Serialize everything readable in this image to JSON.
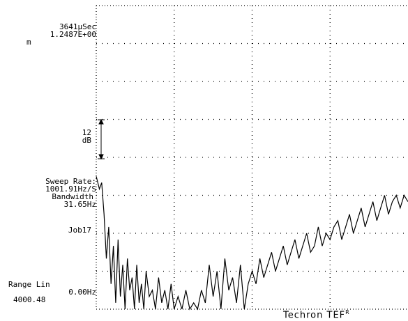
{
  "header": {
    "time": "3641µSec",
    "scale": "1.2487E+00",
    "unit_m": "m"
  },
  "scale_marker": {
    "top": "12",
    "bottom": "dB"
  },
  "sweep": {
    "rate_label": "Sweep Rate:",
    "rate_value": "1001.91Hz/S",
    "bandwidth_label": "Bandwidth",
    "bandwidth_value": "31.65Hz"
  },
  "job": "Job17",
  "range": {
    "mode": "Range Lin",
    "start": "0.00Hz",
    "end": "4000.48"
  },
  "brand": {
    "name": "Techron TEF",
    "mark": "R"
  },
  "colors": {
    "trace": "#000000",
    "grid": "#000000",
    "background": "#ffffff"
  },
  "chart_data": {
    "type": "line",
    "title": "",
    "xlabel": "",
    "ylabel": "",
    "xlim": [
      0,
      4000.48
    ],
    "ylim": [
      -96,
      0
    ],
    "grid": true,
    "x_divisions": 4,
    "y_divisions": 8,
    "series": [
      {
        "values_x": [
          0,
          40,
          70,
          100,
          130,
          160,
          190,
          220,
          250,
          280,
          310,
          340,
          370,
          400,
          430,
          460,
          490,
          520,
          550,
          580,
          610,
          640,
          680,
          720,
          760,
          800,
          840,
          880,
          920,
          960,
          1000,
          1050,
          1100,
          1150,
          1200,
          1250,
          1300,
          1350,
          1400,
          1450,
          1500,
          1550,
          1600,
          1650,
          1700,
          1750,
          1800,
          1850,
          1900,
          1950,
          2000,
          2050,
          2100,
          2150,
          2200,
          2250,
          2300,
          2350,
          2400,
          2450,
          2500,
          2550,
          2600,
          2650,
          2700,
          2750,
          2800,
          2850,
          2900,
          2950,
          3000,
          3050,
          3100,
          3150,
          3200,
          3250,
          3300,
          3350,
          3400,
          3450,
          3500,
          3550,
          3600,
          3650,
          3700,
          3750,
          3800,
          3850,
          3900,
          3950,
          4000
        ],
        "values_y": [
          -54,
          -58,
          -56,
          -66,
          -80,
          -70,
          -88,
          -76,
          -94,
          -74,
          -92,
          -82,
          -96,
          -80,
          -90,
          -86,
          -96,
          -82,
          -94,
          -88,
          -96,
          -84,
          -92,
          -90,
          -96,
          -86,
          -94,
          -90,
          -96,
          -88,
          -96,
          -92,
          -96,
          -90,
          -96,
          -94,
          -96,
          -90,
          -94,
          -82,
          -92,
          -84,
          -96,
          -80,
          -90,
          -86,
          -94,
          -82,
          -96,
          -88,
          -84,
          -88,
          -80,
          -86,
          -82,
          -78,
          -84,
          -80,
          -76,
          -82,
          -78,
          -74,
          -80,
          -76,
          -72,
          -78,
          -76,
          -70,
          -76,
          -72,
          -74,
          -70,
          -68,
          -74,
          -70,
          -66,
          -72,
          -68,
          -64,
          -70,
          -66,
          -62,
          -68,
          -64,
          -60,
          -66,
          -62,
          -60,
          -64,
          -60,
          -62
        ]
      }
    ]
  }
}
